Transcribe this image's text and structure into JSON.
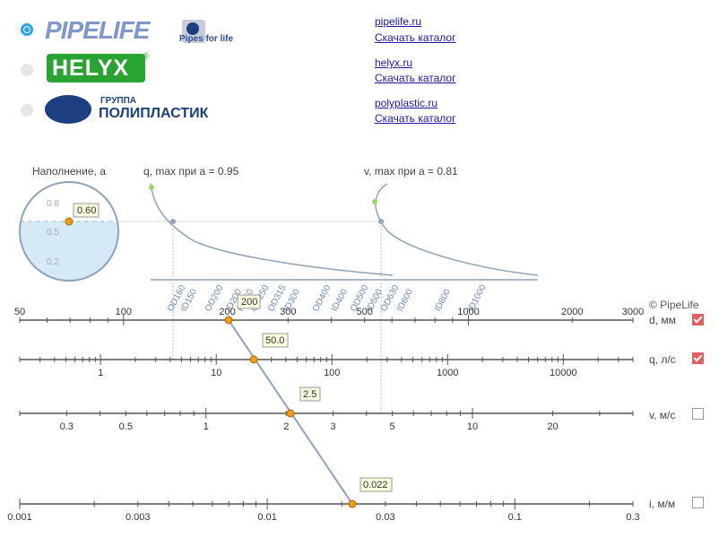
{
  "brands": [
    {
      "id": "pipelife",
      "logo_text": "PIPELIFE",
      "tagline": "Pipes for life",
      "link": "pipelife.ru",
      "catalog": "Скачать каталог",
      "selected": true
    },
    {
      "id": "helyx",
      "logo_text": "HELYX",
      "link": "helyx.ru",
      "catalog": "Скачать каталог",
      "selected": false
    },
    {
      "id": "polyplastic",
      "logo_text": "ПОЛИПЛАСТИК",
      "logo_small": "ГРУППА",
      "link": "polyplastic.ru",
      "catalog": "Скачать каталог",
      "selected": false
    }
  ],
  "fill": {
    "label": "Наполнение, a",
    "ticks": [
      "0.8",
      "0.5",
      "0.2"
    ],
    "value": "0.60",
    "level": 0.6
  },
  "q_curve": {
    "label": "q, max при a = 0.95"
  },
  "v_curve": {
    "label": "v, max при a = 0.81"
  },
  "copyright": "© PipeLife",
  "pipes": [
    "OD160",
    "ID150",
    "OD200",
    "ID200",
    "ID250",
    "OD250",
    "OD315",
    "ID300",
    "OD400",
    "ID400",
    "OD500",
    "ID500",
    "OD630",
    "ID600",
    "ID800",
    "ID1000"
  ],
  "scales": [
    {
      "id": "d",
      "name": "d, мм",
      "checked": true,
      "labels": [
        "50",
        "100",
        "200",
        "300",
        "500",
        "1000",
        "2000",
        "3000"
      ],
      "marker": "200"
    },
    {
      "id": "q",
      "name": "q, л/с",
      "checked": true,
      "labels": [
        "1",
        "10",
        "100",
        "1000",
        "10000"
      ],
      "marker": "50.0"
    },
    {
      "id": "v",
      "name": "v, м/с",
      "checked": false,
      "labels": [
        "0.3",
        "0.5",
        "1",
        "2",
        "3",
        "5",
        "10",
        "20"
      ],
      "marker": "2.5"
    },
    {
      "id": "i",
      "name": "i, м/м",
      "checked": false,
      "labels": [
        "0.001",
        "0.003",
        "0.01",
        "0.03",
        "0.1",
        "0.3"
      ],
      "marker": "0.022"
    }
  ],
  "colors": {
    "accent": "#2aa3e8",
    "marker": "#f39c12",
    "line": "#8fa3b8",
    "water": "#d6e9f7",
    "check": "#e06060"
  }
}
